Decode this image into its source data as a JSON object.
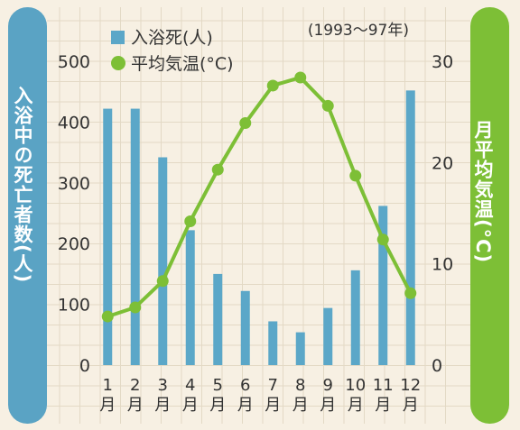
{
  "colors": {
    "background": "#f7f0e3",
    "grid": "#e3d9c5",
    "bar": "#5ba7c8",
    "line": "#7dbf36",
    "left_pill": "#5aa3c4",
    "right_pill": "#7dbf36",
    "text": "#333333"
  },
  "chart_data": {
    "type": "bar+line",
    "period_note": "(1993〜97年)",
    "categories": [
      "1\n月",
      "2\n月",
      "3\n月",
      "4\n月",
      "5\n月",
      "6\n月",
      "7\n月",
      "8\n月",
      "9\n月",
      "10\n月",
      "11\n月",
      "12\n月"
    ],
    "series": [
      {
        "name": "入浴死(人)",
        "type": "bar",
        "axis": "left",
        "values": [
          422,
          422,
          342,
          222,
          150,
          122,
          72,
          54,
          94,
          156,
          262,
          452
        ]
      },
      {
        "name": "平均気温(°C)",
        "type": "line",
        "axis": "right",
        "values": [
          4.8,
          5.7,
          8.3,
          14.2,
          19.3,
          23.9,
          27.6,
          28.4,
          25.6,
          18.7,
          12.4,
          7.1
        ]
      }
    ],
    "y_left": {
      "label": "入浴中の死亡者数(人)",
      "ticks": [
        "0",
        "100",
        "200",
        "300",
        "400",
        "500"
      ],
      "range": [
        0,
        500
      ]
    },
    "y_right": {
      "label": "月平均気温(°C)",
      "ticks": [
        "0",
        "10",
        "20",
        "30"
      ],
      "range": [
        0,
        30
      ]
    },
    "legend_position": "top-left",
    "grid": true
  }
}
